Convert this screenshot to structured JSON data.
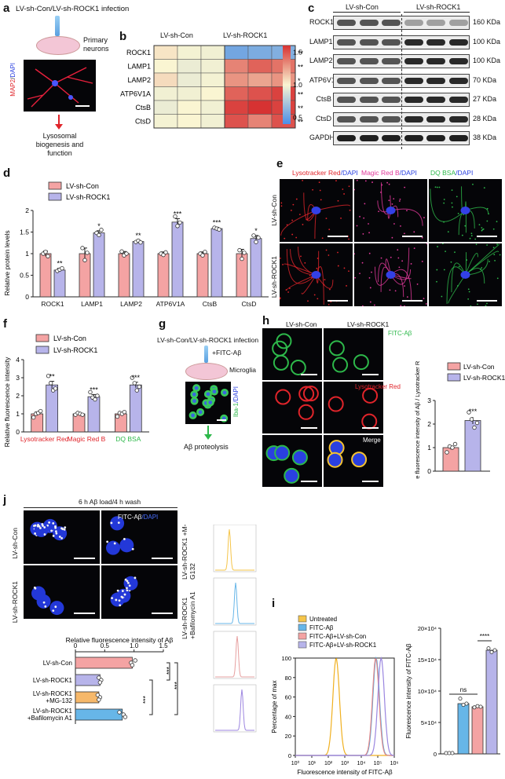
{
  "panels": {
    "a": "a",
    "b": "b",
    "c": "c",
    "d": "d",
    "e": "e",
    "f": "f",
    "g": "g",
    "h": "h",
    "i": "i",
    "j": "j"
  },
  "groups": {
    "con": "LV-sh-Con",
    "rock": "LV-sh-ROCK1"
  },
  "colors": {
    "con": "#f4a3a3",
    "rock": "#b7b4ea",
    "orange": "#f6b86a",
    "blue": "#67b6e8",
    "red": "#e0242a",
    "magenta": "#e0389a",
    "green": "#2db84a",
    "yellow": "#f5c54a",
    "purple": "#9d86e0"
  },
  "panel_a": {
    "title": "LV-sh-Con/LV-sh-ROCK1 infection",
    "cells": "Primary neurons",
    "stain_red": "MAP2",
    "stain_sep": "/",
    "stain_blue": "DAPI",
    "outcome_line1": "Lysosomal",
    "outcome_line2": "biogenesis and",
    "outcome_line3": "function"
  },
  "panel_b": {
    "rows": [
      "ROCK1",
      "LAMP1",
      "LAMP2",
      "ATP6V1A",
      "CtsB",
      "CtsD"
    ],
    "sig": [
      "**",
      "**",
      "*",
      "**",
      "**",
      "**"
    ],
    "colorbar_ticks": [
      "1.5",
      "1.0",
      "0.5"
    ]
  },
  "panel_c": {
    "rows": [
      "ROCK1",
      "LAMP1",
      "LAMP2",
      "ATP6V1A",
      "CtsB",
      "CtsD",
      "GAPDH"
    ],
    "sizes": [
      "160 KDa",
      "100 KDa",
      "100 KDa",
      "70 KDa",
      "27 KDa",
      "28 KDa",
      "38 KDa"
    ]
  },
  "panel_d": {
    "ylabel": "Relative protein levels",
    "sig": [
      "**",
      "*",
      "**",
      "***",
      "***",
      "*"
    ]
  },
  "panel_e": {
    "col1_red": "Lysotracker Red",
    "col1_blue": "/DAPI",
    "col2_red": "Magic Red B",
    "col2_blue": "/DAPI",
    "col3_green": "DQ BSA",
    "col3_blue": "/DAPI"
  },
  "panel_f": {
    "ylabel": "Relative fluorescence intensity",
    "sig": [
      "**",
      "***",
      "***"
    ]
  },
  "panel_g": {
    "title": "LV-sh-Con/LV-sh-ROCK1 infection",
    "treat": "+FITC-Aβ",
    "cells": "Microglia",
    "stain_green": "Iba-1",
    "stain_blue": "/DAPI",
    "outcome": "Aβ proteolysis"
  },
  "panel_h": {
    "stain1": "FITC-Aβ",
    "stain2": "Lysotracker Red",
    "stain3": "Merge",
    "ylabel": "Relative fluorescence intensity of Aβ / Lysotracker Red⁺",
    "sig": "***"
  },
  "panel_i": {
    "legend": [
      "Untreated",
      "FITC-Aβ",
      "FITC-Aβ+LV-sh-Con",
      "FITC-Aβ+LV-sh-ROCK1"
    ],
    "ylabel": "Percentage of max",
    "xlabel": "Fluorescence intensity of FITC-Aβ",
    "bar_ylabel": "Fluorescence intensity of FITC-Aβ",
    "ns": "ns",
    "sig": "****"
  },
  "panel_j": {
    "header": "6 h Aβ load/4 h wash",
    "stain_white": "FITC-Aβ",
    "stain_blue": "/DAPI",
    "side1": "LV-sh-ROCK1 +M-G132",
    "side2": "LV-sh-ROCK1 +Bafilomycin A1",
    "xtitle": "Relative fluorescence intensity of Aβ",
    "rows": [
      "LV-sh-Con",
      "LV-sh-ROCK1",
      "LV-sh-ROCK1 +MG-132",
      "LV-sh-ROCK1 +Bafilomycin A1"
    ],
    "sig": [
      "***",
      "***",
      "***"
    ]
  },
  "chart_data": [
    {
      "type": "heatmap",
      "panel": "b",
      "columns": [
        "LV-sh-Con",
        "LV-sh-Con",
        "LV-sh-Con",
        "LV-sh-ROCK1",
        "LV-sh-ROCK1",
        "LV-sh-ROCK1"
      ],
      "rows": [
        "ROCK1",
        "LAMP1",
        "LAMP2",
        "ATP6V1A",
        "CtsB",
        "CtsD"
      ],
      "values": [
        [
          1.05,
          0.98,
          0.97,
          0.55,
          0.58,
          0.6
        ],
        [
          1.0,
          0.95,
          0.97,
          1.35,
          1.45,
          1.4
        ],
        [
          1.08,
          0.95,
          0.98,
          1.3,
          1.25,
          1.3
        ],
        [
          0.97,
          0.97,
          1.0,
          1.45,
          1.5,
          1.55
        ],
        [
          0.95,
          1.0,
          0.97,
          1.55,
          1.6,
          1.55
        ],
        [
          0.98,
          1.0,
          0.97,
          1.5,
          1.35,
          1.5
        ]
      ],
      "colorbar_range": [
        0.4,
        1.6
      ]
    },
    {
      "type": "bar",
      "panel": "d",
      "categories": [
        "ROCK1",
        "LAMP1",
        "LAMP2",
        "ATP6V1A",
        "CtsB",
        "CtsD"
      ],
      "series": [
        {
          "name": "LV-sh-Con",
          "values": [
            1.0,
            1.0,
            1.0,
            1.0,
            1.0,
            1.0
          ],
          "errors": [
            0.06,
            0.13,
            0.05,
            0.04,
            0.04,
            0.1
          ],
          "points": [
            [
              1.0,
              1.04,
              0.94
            ],
            [
              1.13,
              0.85,
              1.02
            ],
            [
              1.05,
              0.96,
              1.0
            ],
            [
              1.0,
              0.97,
              1.03
            ],
            [
              1.0,
              0.96,
              1.04
            ],
            [
              1.08,
              0.88,
              1.02
            ]
          ]
        },
        {
          "name": "LV-sh-ROCK1",
          "values": [
            0.62,
            1.48,
            1.28,
            1.73,
            1.58,
            1.35
          ],
          "errors": [
            0.04,
            0.05,
            0.03,
            0.08,
            0.03,
            0.07
          ],
          "points": [
            [
              0.6,
              0.63,
              0.66
            ],
            [
              1.48,
              1.43,
              1.55
            ],
            [
              1.27,
              1.3,
              1.26
            ],
            [
              1.86,
              1.64,
              1.72
            ],
            [
              1.6,
              1.58,
              1.56
            ],
            [
              1.42,
              1.27,
              1.37
            ]
          ]
        }
      ],
      "ylim": [
        0,
        2
      ],
      "yticks": [
        0,
        0.5,
        1.0,
        1.5,
        2.0
      ]
    },
    {
      "type": "bar",
      "panel": "f",
      "categories": [
        "Lysotracker Red",
        "Magic Red B",
        "DQ BSA"
      ],
      "series": [
        {
          "name": "LV-sh-Con",
          "values": [
            1.0,
            1.0,
            1.0
          ],
          "errors": [
            0.1,
            0.05,
            0.08
          ],
          "points": [
            [
              0.8,
              1.0,
              1.05,
              1.15
            ],
            [
              0.95,
              1.05,
              1.0,
              0.95
            ],
            [
              0.85,
              1.05,
              1.0,
              1.1
            ]
          ]
        },
        {
          "name": "LV-sh-ROCK1",
          "values": [
            2.6,
            1.95,
            2.6
          ],
          "errors": [
            0.2,
            0.12,
            0.15
          ],
          "points": [
            [
              3.1,
              2.7,
              2.3,
              2.4
            ],
            [
              2.2,
              1.9,
              1.8,
              2.0
            ],
            [
              3.0,
              2.7,
              2.3,
              2.5
            ]
          ]
        }
      ],
      "ylim": [
        0,
        4
      ],
      "yticks": [
        0,
        1,
        2,
        3,
        4
      ]
    },
    {
      "type": "bar",
      "panel": "h",
      "categories": [
        "LV-sh-Con",
        "LV-sh-ROCK1"
      ],
      "values": [
        1.0,
        2.15
      ],
      "errors": [
        0.08,
        0.15
      ],
      "points": [
        [
          0.8,
          1.05,
          1.0,
          1.15
        ],
        [
          2.5,
          2.2,
          1.85,
          2.05
        ]
      ],
      "ylim": [
        0,
        3
      ],
      "yticks": [
        0,
        1,
        2,
        3
      ]
    },
    {
      "type": "line",
      "panel": "i",
      "x_scale": "log",
      "xticks": [
        "10⁰",
        "10¹",
        "10²",
        "10³",
        "10⁴",
        "10⁵",
        "10⁶"
      ],
      "yticks": [
        0,
        20,
        40,
        60,
        80,
        100
      ],
      "peaks": [
        {
          "name": "Untreated",
          "center": 300,
          "max": 100
        },
        {
          "name": "FITC-Aβ",
          "center": 80000,
          "max": 100
        },
        {
          "name": "FITC-Aβ+LV-sh-Con",
          "center": 75000,
          "max": 100
        },
        {
          "name": "FITC-Aβ+LV-sh-ROCK1",
          "center": 160000,
          "max": 100
        }
      ]
    },
    {
      "type": "bar",
      "panel": "i",
      "categories": [
        "Untreated",
        "FITC-Aβ",
        "FITC-Aβ+LV-sh-Con",
        "FITC-Aβ+LV-sh-ROCK1"
      ],
      "values": [
        0,
        80000,
        75000,
        165000
      ],
      "points": [
        [
          0,
          0,
          0
        ],
        [
          88000,
          78000,
          80000
        ],
        [
          74000,
          76000,
          75000
        ],
        [
          168000,
          162000,
          165000
        ]
      ],
      "ylim": [
        0,
        200000
      ],
      "yticks": [
        "0",
        "5×10⁴",
        "10×10⁴",
        "15×10⁴",
        "20×10⁴"
      ]
    },
    {
      "type": "bar",
      "panel": "j",
      "orientation": "horizontal",
      "categories": [
        "LV-sh-Con",
        "LV-sh-ROCK1",
        "LV-sh-ROCK1 +MG-132",
        "LV-sh-ROCK1 +Bafilomycin A1"
      ],
      "values": [
        0.97,
        0.42,
        0.4,
        0.8
      ],
      "points": [
        [
          1.02,
          0.95,
          0.97
        ],
        [
          0.4,
          0.44,
          0.42
        ],
        [
          0.38,
          0.42,
          0.4
        ],
        [
          0.75,
          0.82,
          0.85
        ]
      ],
      "xlim": [
        0,
        1.5
      ],
      "xticks": [
        "0",
        "0.5",
        "1.0",
        "1.5"
      ]
    }
  ]
}
